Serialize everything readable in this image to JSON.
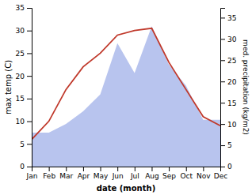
{
  "chart_data": {
    "type": "line",
    "categories": [
      "Jan",
      "Feb",
      "Mar",
      "Apr",
      "May",
      "Jun",
      "Jul",
      "Aug",
      "Sep",
      "Oct",
      "Nov",
      "Dec"
    ],
    "series": [
      {
        "type": "area",
        "axis": "y2",
        "color": "#b8c4ee",
        "values": [
          8,
          8,
          10,
          13,
          17,
          29,
          22,
          33,
          24,
          19,
          11,
          11
        ]
      },
      {
        "type": "line",
        "color": "#c0392b",
        "values": [
          6,
          10,
          17,
          22,
          25,
          29,
          30,
          30.5,
          23,
          17,
          11,
          9
        ]
      }
    ],
    "x_label": "date (month)",
    "y_label": "max temp (C)",
    "y2_label": "med. precipitation (kg/m2)",
    "ylim": [
      0,
      35
    ],
    "yticks": [
      0,
      5,
      10,
      15,
      20,
      25,
      30,
      35
    ],
    "y2lim": [
      0,
      37.3
    ],
    "y2ticks": [
      0,
      5,
      10,
      15,
      20,
      25,
      30,
      35
    ],
    "grid": false
  }
}
